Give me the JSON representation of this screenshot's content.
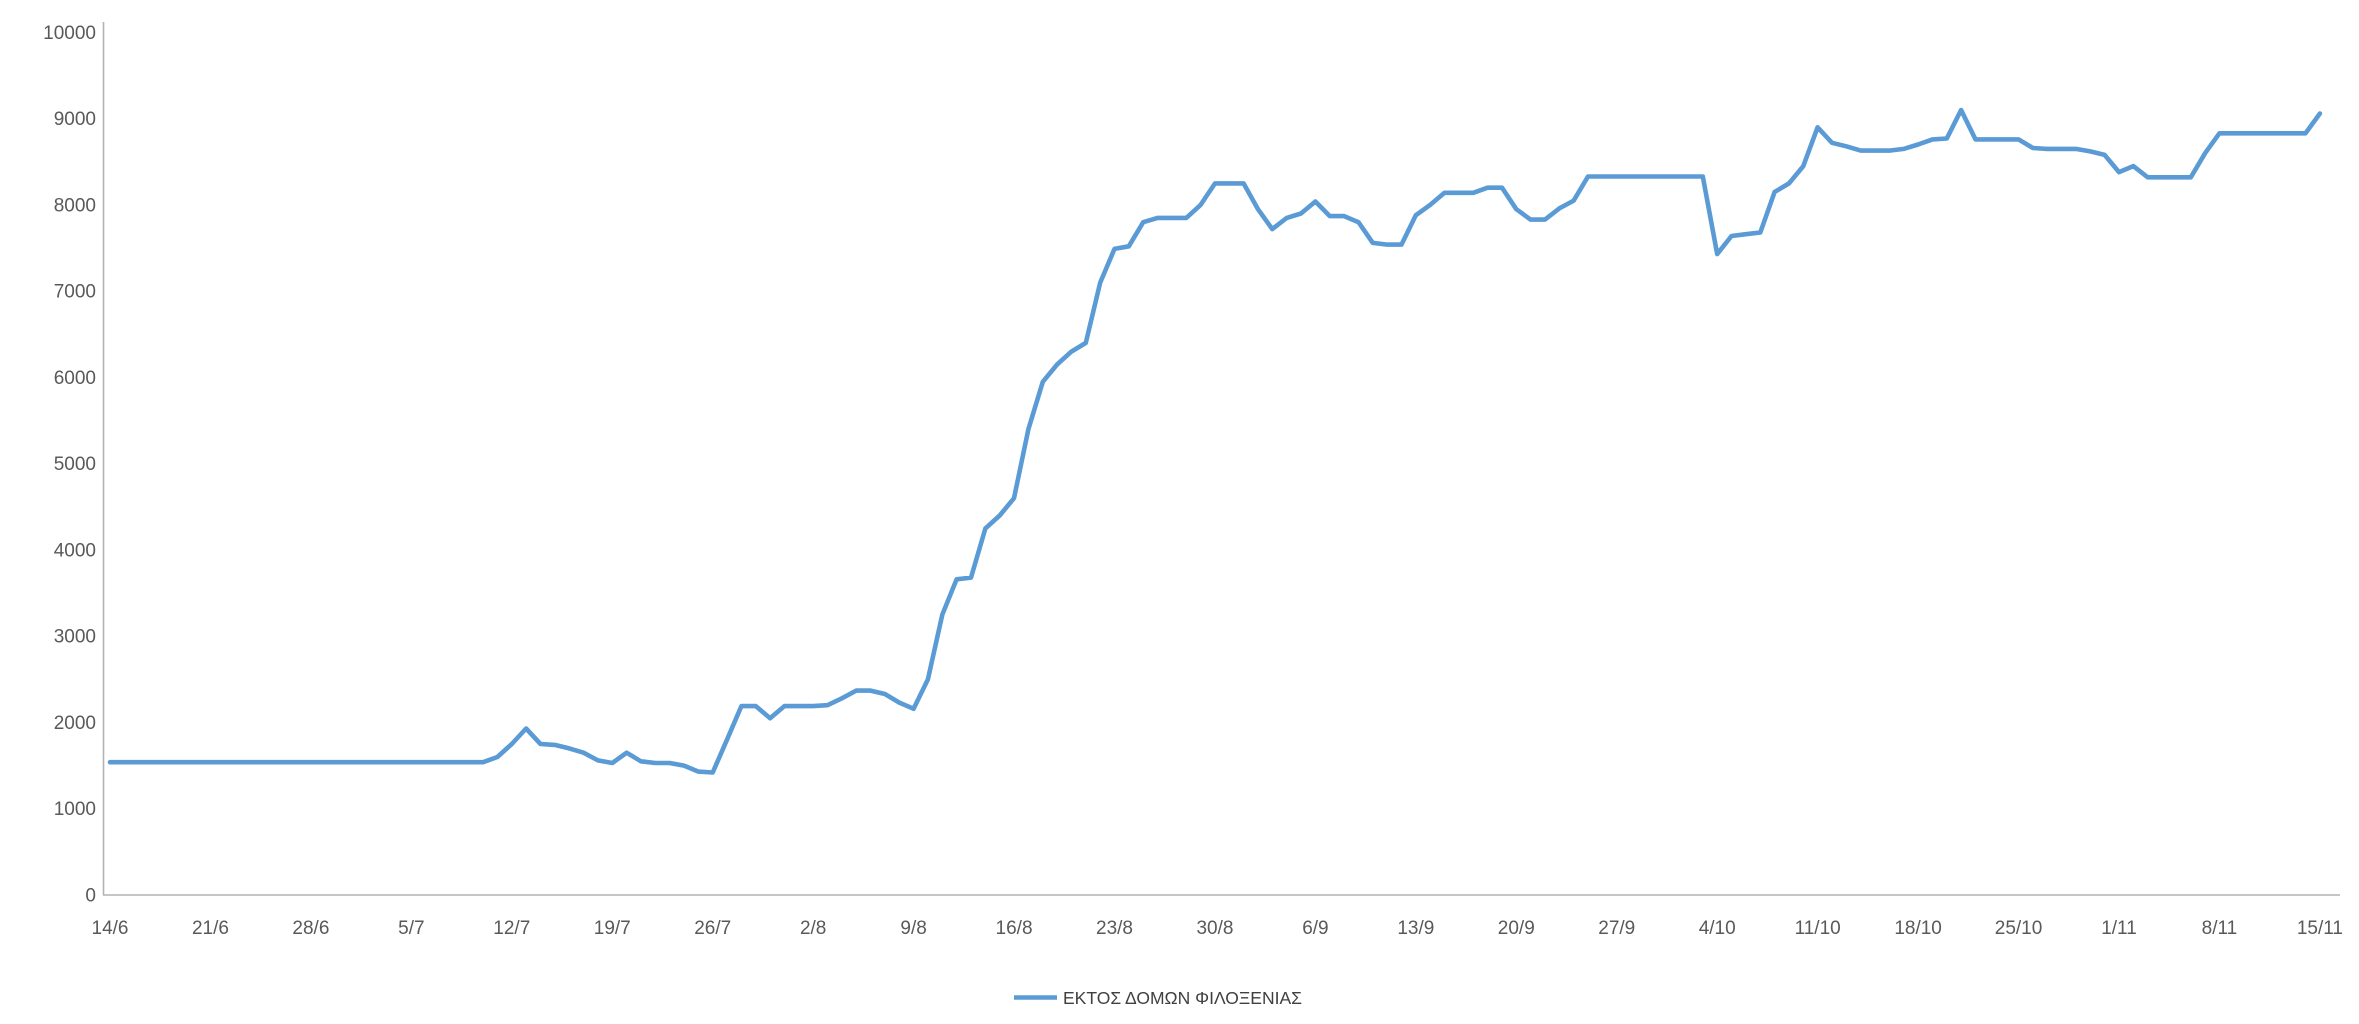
{
  "chart_data": {
    "type": "line",
    "title": "",
    "xlabel": "",
    "ylabel": "",
    "ylim": [
      0,
      10000
    ],
    "y_ticks": [
      0,
      1000,
      2000,
      3000,
      4000,
      5000,
      6000,
      7000,
      8000,
      9000,
      10000
    ],
    "y_tick_labels": [
      "0",
      "1000",
      "2000",
      "3000",
      "4000",
      "5000",
      "6000",
      "7000",
      "8000",
      "9000",
      "10000"
    ],
    "x_tick_labels": [
      "14/6",
      "21/6",
      "28/6",
      "5/7",
      "12/7",
      "19/7",
      "26/7",
      "2/8",
      "9/8",
      "16/8",
      "23/8",
      "30/8",
      "6/9",
      "13/9",
      "20/9",
      "27/9",
      "4/10",
      "11/10",
      "18/10",
      "25/10",
      "1/11",
      "8/11",
      "15/11"
    ],
    "x_points_cadence": "daily",
    "x_ticks_every_n_points": 7,
    "x_range": [
      "14/6",
      "15/11"
    ],
    "grid": false,
    "legend_position": "bottom-center",
    "series": [
      {
        "name": "ΕΚΤΟΣ ΔΟΜΩΝ ΦΙΛΟΞΕΝΙΑΣ",
        "color": "#5b9bd5",
        "values": [
          1540,
          1540,
          1540,
          1540,
          1540,
          1540,
          1540,
          1540,
          1540,
          1540,
          1540,
          1540,
          1540,
          1540,
          1540,
          1540,
          1540,
          1540,
          1540,
          1540,
          1540,
          1540,
          1540,
          1540,
          1540,
          1540,
          1540,
          1600,
          1750,
          1930,
          1750,
          1740,
          1700,
          1650,
          1560,
          1530,
          1650,
          1550,
          1530,
          1530,
          1500,
          1430,
          1420,
          1800,
          2190,
          2190,
          2050,
          2190,
          2190,
          2190,
          2200,
          2280,
          2370,
          2370,
          2330,
          2230,
          2160,
          2500,
          3250,
          3660,
          3680,
          4250,
          4400,
          4600,
          5400,
          5950,
          6150,
          6300,
          6400,
          7100,
          7490,
          7520,
          7800,
          7850,
          7850,
          7850,
          8000,
          8250,
          8250,
          8250,
          7950,
          7720,
          7850,
          7900,
          8040,
          7870,
          7870,
          7800,
          7560,
          7540,
          7540,
          7880,
          8000,
          8140,
          8140,
          8140,
          8200,
          8200,
          7950,
          7830,
          7830,
          7960,
          8050,
          8330,
          8330,
          8330,
          8330,
          8330,
          8330,
          8330,
          8330,
          8330,
          7430,
          7640,
          7660,
          7680,
          8150,
          8250,
          8450,
          8900,
          8720,
          8680,
          8630,
          8630,
          8630,
          8650,
          8700,
          8760,
          8770,
          9100,
          8760,
          8760,
          8760,
          8760,
          8660,
          8650,
          8650,
          8650,
          8620,
          8580,
          8380,
          8450,
          8320,
          8320,
          8320,
          8320,
          8600,
          8830,
          8830,
          8830,
          8830,
          8830,
          8830,
          8830,
          9060
        ]
      }
    ]
  },
  "legend": {
    "label": "ΕΚΤΟΣ ΔΟΜΩΝ ΦΙΛΟΞΕΝΙΑΣ"
  },
  "colors": {
    "series_line": "#5b9bd5",
    "axis_line": "#b3b3b3",
    "tick_text": "#595959",
    "legend_text": "#404040",
    "background": "#ffffff"
  }
}
